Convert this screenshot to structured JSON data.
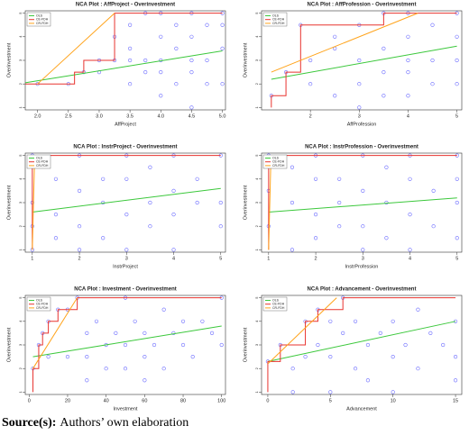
{
  "chart_data": [
    {
      "type": "scatter",
      "title": "NCA Plot : AffProject - Overinvestment",
      "x_label": "AffProject",
      "y_label": "Overinvestment",
      "xlim": [
        1.8,
        5.05
      ],
      "ylim": [
        0.9,
        5.1
      ],
      "xticks": [
        {
          "value": 2,
          "label": "2.0"
        },
        2.5,
        {
          "value": 3,
          "label": "3.0"
        },
        3.5,
        {
          "value": 4,
          "label": "4.0"
        },
        4.5,
        {
          "value": 5,
          "label": "5.0"
        }
      ],
      "yticks": [
        1,
        2,
        3,
        4,
        5
      ],
      "legend": "top-left",
      "grid": false,
      "points": {
        "color": "#6b6bff",
        "x": [
          2,
          2.5,
          2.75,
          3,
          3,
          3.25,
          3.25,
          3.5,
          3.5,
          3.5,
          3.75,
          3.75,
          3.75,
          4,
          4,
          4,
          4,
          4.25,
          4.25,
          4.25,
          4.5,
          4.5,
          4.5,
          4.5,
          4.75,
          4.75,
          4.75,
          5,
          5,
          5,
          5,
          4,
          3.5,
          4.5
        ],
        "y": [
          2,
          2,
          2.5,
          3,
          2.5,
          3,
          4,
          3.5,
          4.5,
          2,
          3,
          5,
          2.5,
          1.5,
          3,
          4,
          5,
          2,
          3.5,
          4.5,
          1,
          2.5,
          4,
          5,
          3,
          4.5,
          2,
          2,
          3.5,
          4.5,
          5,
          2.5,
          3,
          3
        ]
      },
      "series": [
        {
          "name": "OLS",
          "color": "#3cc83c",
          "x": [
            1.8,
            5
          ],
          "y": [
            2.05,
            3.4
          ]
        },
        {
          "name": "CE-FDH",
          "color": "#e8332f",
          "x": [
            1.8,
            2.6,
            2.6,
            2.75,
            2.75,
            3.25,
            3.25,
            5
          ],
          "y": [
            2,
            2,
            2.5,
            2.5,
            3,
            3,
            5,
            5
          ]
        },
        {
          "name": "CR-FDH",
          "color": "#ffa31a",
          "x": [
            2,
            3.25
          ],
          "y": [
            2,
            5
          ]
        }
      ]
    },
    {
      "type": "scatter",
      "title": "NCA Plot : AffProfession - Overinvestment",
      "x_label": "AffProfession",
      "y_label": "Overinvestment",
      "xlim": [
        1,
        5.1
      ],
      "ylim": [
        0.9,
        5.1
      ],
      "xticks": [
        2,
        3,
        4,
        5
      ],
      "yticks": [
        1,
        2,
        3,
        4,
        5
      ],
      "legend": "top-left",
      "grid": false,
      "points": {
        "color": "#6b6bff",
        "x": [
          1.2,
          1.5,
          1.8,
          2,
          2,
          2.5,
          2.5,
          3,
          3,
          3,
          3,
          3.5,
          3.5,
          3.5,
          4,
          4,
          4,
          4,
          4.5,
          4.5,
          4.5,
          5,
          5,
          5,
          5,
          2.5,
          3.5,
          4
        ],
        "y": [
          1.5,
          2.5,
          4.5,
          3,
          2,
          3.5,
          1.5,
          4.5,
          3,
          2,
          1,
          5,
          3.5,
          2.5,
          5,
          4,
          3,
          1.5,
          4.5,
          3,
          2,
          5,
          4,
          3,
          2,
          4,
          1.5,
          2.5
        ]
      },
      "series": [
        {
          "name": "OLS",
          "color": "#3cc83c",
          "x": [
            1.2,
            5
          ],
          "y": [
            2.2,
            3.6
          ]
        },
        {
          "name": "CE-FDH",
          "color": "#e8332f",
          "x": [
            1.2,
            1.2,
            1.5,
            1.5,
            1.8,
            1.8,
            3.5,
            3.5,
            5
          ],
          "y": [
            1,
            1.5,
            1.5,
            2.5,
            2.5,
            4.5,
            4.5,
            5,
            5
          ]
        },
        {
          "name": "CR-FDH",
          "color": "#ffa31a",
          "x": [
            1.2,
            4.2
          ],
          "y": [
            2.5,
            5
          ]
        }
      ]
    },
    {
      "type": "scatter",
      "title": "NCA Plot : InstrProject - Overinvestment",
      "x_label": "InstrProject",
      "y_label": "Overinvestment",
      "xlim": [
        0.85,
        5.1
      ],
      "ylim": [
        0.9,
        5.1
      ],
      "xticks": [
        1,
        2,
        3,
        4,
        5
      ],
      "yticks": [
        1,
        2,
        3,
        4,
        5
      ],
      "legend": "top-left",
      "grid": false,
      "points": {
        "color": "#6b6bff",
        "x": [
          1,
          1,
          1,
          1,
          1.5,
          1.5,
          1.5,
          2,
          2,
          2,
          2,
          2.5,
          2.5,
          2.5,
          3,
          3,
          3,
          3,
          3.5,
          3.5,
          3.5,
          4,
          4,
          4,
          4,
          4.5,
          4.5,
          5,
          5,
          5
        ],
        "y": [
          1,
          2,
          3,
          5,
          4,
          2.5,
          1.5,
          5,
          3.5,
          2,
          1,
          4,
          3,
          1.5,
          5,
          4,
          2.5,
          1,
          4.5,
          3,
          2,
          5,
          3.5,
          2.5,
          1,
          4,
          3,
          5,
          3,
          2
        ]
      },
      "series": [
        {
          "name": "OLS",
          "color": "#3cc83c",
          "x": [
            1,
            5
          ],
          "y": [
            2.6,
            3.6
          ]
        },
        {
          "name": "CE-FDH",
          "color": "#e8332f",
          "x": [
            1,
            1,
            5
          ],
          "y": [
            1,
            5,
            5
          ]
        },
        {
          "name": "CR-FDH",
          "color": "#ffa31a",
          "x": [
            1,
            1.05
          ],
          "y": [
            1,
            5
          ]
        }
      ]
    },
    {
      "type": "scatter",
      "title": "NCA Plot : InstrProfession - Overinvestment",
      "x_label": "InstrProfession",
      "y_label": "Overinvestment",
      "xlim": [
        0.85,
        5.1
      ],
      "ylim": [
        0.9,
        5.1
      ],
      "xticks": [
        1,
        2,
        3,
        4,
        5
      ],
      "yticks": [
        1,
        2,
        3,
        4,
        5
      ],
      "legend": "top-left",
      "grid": false,
      "points": {
        "color": "#6b6bff",
        "x": [
          1,
          1,
          1,
          1.5,
          1.5,
          1.5,
          2,
          2,
          2,
          2,
          2.5,
          2.5,
          2.5,
          3,
          3,
          3,
          3,
          3.5,
          3.5,
          3.5,
          4,
          4,
          4,
          4,
          4.5,
          4.5,
          5,
          5,
          5,
          5
        ],
        "y": [
          2,
          3.5,
          5,
          4.5,
          3,
          1,
          5,
          4,
          2.5,
          1.5,
          4,
          3,
          2,
          5,
          3.5,
          2,
          1,
          4.5,
          3,
          1.5,
          5,
          4,
          2.5,
          1,
          3.5,
          2,
          5,
          4,
          3,
          1.5
        ]
      },
      "series": [
        {
          "name": "OLS",
          "color": "#3cc83c",
          "x": [
            1,
            5
          ],
          "y": [
            2.6,
            3.2
          ]
        },
        {
          "name": "CE-FDH",
          "color": "#e8332f",
          "x": [
            1,
            1,
            5
          ],
          "y": [
            1,
            5,
            5
          ]
        },
        {
          "name": "CR-FDH",
          "color": "#ffa31a",
          "x": [
            1,
            1.05
          ],
          "y": [
            1,
            5
          ]
        }
      ]
    },
    {
      "type": "scatter",
      "title": "NCA Plot : Investment - Overinvestment",
      "x_label": "Investment",
      "y_label": "Overinvestment",
      "xlim": [
        -2,
        102
      ],
      "ylim": [
        0.9,
        5.1
      ],
      "xticks": [
        0,
        20,
        40,
        60,
        80,
        100
      ],
      "yticks": [
        1,
        2,
        3,
        4,
        5
      ],
      "legend": "top-left",
      "grid": false,
      "points": {
        "color": "#6b6bff",
        "x": [
          2,
          5,
          7,
          10,
          15,
          20,
          25,
          30,
          30,
          35,
          40,
          40,
          45,
          50,
          50,
          50,
          55,
          60,
          60,
          65,
          70,
          70,
          75,
          80,
          80,
          85,
          90,
          95,
          100,
          100,
          20,
          10,
          30,
          60
        ],
        "y": [
          2,
          3,
          3.5,
          4,
          4.5,
          4.5,
          5,
          3.5,
          2.5,
          4,
          3,
          2,
          3.5,
          5,
          3,
          2,
          4,
          3.5,
          2.5,
          3,
          4.5,
          2,
          3.5,
          3,
          4,
          2.5,
          4,
          3.5,
          3,
          5,
          2.5,
          2.5,
          1.5,
          1.5
        ]
      },
      "series": [
        {
          "name": "OLS",
          "color": "#3cc83c",
          "x": [
            2,
            100
          ],
          "y": [
            2.5,
            3.8
          ]
        },
        {
          "name": "CE-FDH",
          "color": "#e8332f",
          "x": [
            2,
            2,
            5,
            5,
            7,
            7,
            10,
            10,
            15,
            15,
            25,
            25,
            100
          ],
          "y": [
            1,
            2,
            2,
            3,
            3,
            3.5,
            3.5,
            4,
            4,
            4.5,
            4.5,
            5,
            5
          ]
        },
        {
          "name": "CR-FDH",
          "color": "#ffa31a",
          "x": [
            2,
            25
          ],
          "y": [
            2,
            5
          ]
        }
      ]
    },
    {
      "type": "scatter",
      "title": "NCA Plot : Advancement - Overinvestment",
      "x_label": "Advancement",
      "y_label": "Overinvestment",
      "xlim": [
        -0.5,
        15.5
      ],
      "ylim": [
        0.9,
        5.1
      ],
      "xticks": [
        0,
        5,
        10,
        15
      ],
      "yticks": [
        1,
        2,
        3,
        4,
        5
      ],
      "legend": "top-left",
      "grid": false,
      "points": {
        "color": "#6b6bff",
        "x": [
          0,
          1,
          3,
          4,
          6,
          2,
          2,
          3,
          4,
          5,
          5,
          5,
          6,
          7,
          7,
          8,
          8,
          9,
          10,
          10,
          10,
          11,
          12,
          12,
          13,
          14,
          15,
          15,
          15
        ],
        "y": [
          2.3,
          3,
          4,
          4.5,
          5,
          2,
          1,
          2.5,
          3,
          4,
          2.5,
          1,
          3.5,
          4,
          2,
          3,
          1.5,
          3.5,
          4,
          2.5,
          1,
          3,
          4.5,
          2,
          3.5,
          3,
          4,
          2.5,
          1.5
        ]
      },
      "series": [
        {
          "name": "OLS",
          "color": "#3cc83c",
          "x": [
            0,
            15
          ],
          "y": [
            2.3,
            4
          ]
        },
        {
          "name": "CE-FDH",
          "color": "#e8332f",
          "x": [
            0,
            0,
            1,
            1,
            3,
            3,
            4,
            4,
            6,
            6,
            15
          ],
          "y": [
            1,
            2.3,
            2.3,
            3,
            3,
            4,
            4,
            4.5,
            4.5,
            5,
            5
          ]
        },
        {
          "name": "CR-FDH",
          "color": "#ffa31a",
          "x": [
            0,
            5.5
          ],
          "y": [
            2.2,
            5
          ]
        }
      ]
    }
  ],
  "caption": {
    "label": "Source(s):",
    "text": "Authors’ own elaboration"
  }
}
